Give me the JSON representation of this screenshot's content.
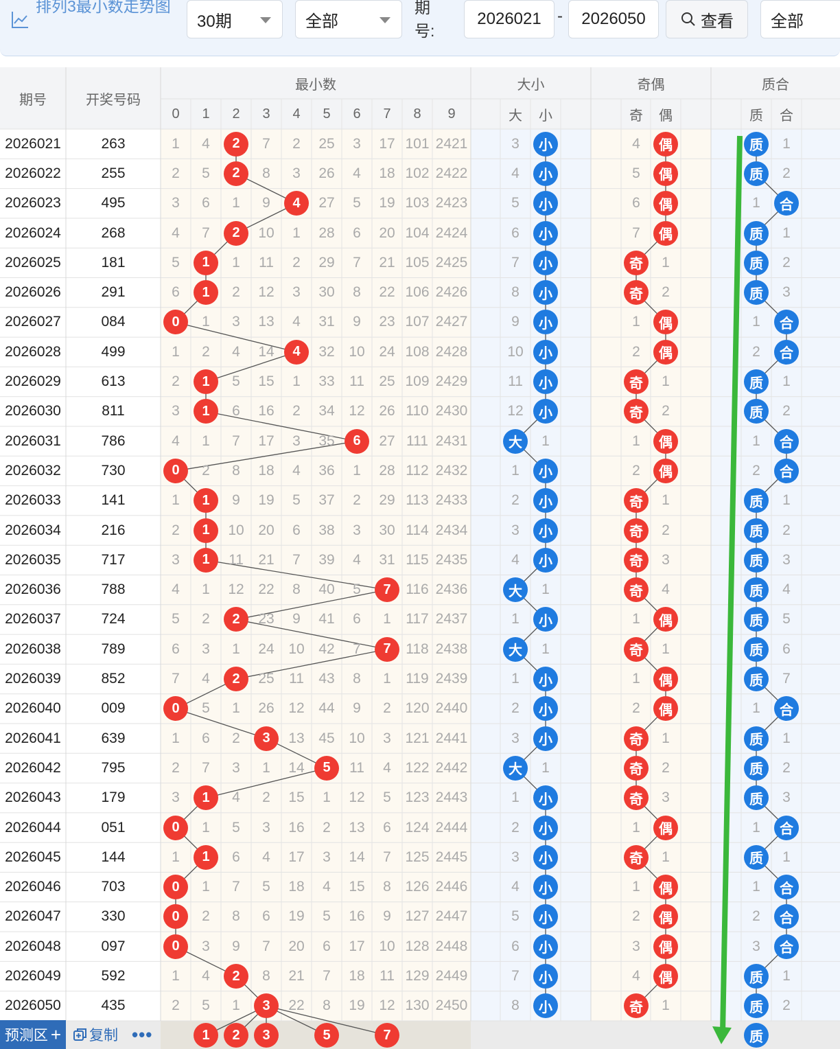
{
  "toolbar": {
    "title": "排列3最小数走势图",
    "period_select": "30期",
    "type_select": "全部",
    "issue_label": "期号:",
    "issue_from": "2026021",
    "issue_dash": "-",
    "issue_to": "2026050",
    "view_button": "查看",
    "filter_select": "全部"
  },
  "headers": {
    "issue": "期号",
    "draw": "开奖号码",
    "min_group": "最小数",
    "digits": [
      "0",
      "1",
      "2",
      "3",
      "4",
      "5",
      "6",
      "7",
      "8",
      "9"
    ],
    "size_group": "大小",
    "size_cols": [
      "大",
      "小"
    ],
    "parity_group": "奇偶",
    "parity_cols": [
      "奇",
      "偶"
    ],
    "prime_group": "质合",
    "prime_cols": [
      "质",
      "合"
    ]
  },
  "rows": [
    {
      "issue": "2026021",
      "draw": "263",
      "digits": [
        "1",
        "4",
        "2",
        "7",
        "2",
        "25",
        "3",
        "17",
        "101",
        "2421"
      ],
      "hit": 2,
      "size": [
        "3",
        "小"
      ],
      "size_hit": 1,
      "parity": [
        "4",
        "偶"
      ],
      "parity_hit": 1,
      "prime": [
        "质",
        "1"
      ],
      "prime_hit": 0
    },
    {
      "issue": "2026022",
      "draw": "255",
      "digits": [
        "2",
        "5",
        "2",
        "8",
        "3",
        "26",
        "4",
        "18",
        "102",
        "2422"
      ],
      "hit": 2,
      "size": [
        "4",
        "小"
      ],
      "size_hit": 1,
      "parity": [
        "5",
        "偶"
      ],
      "parity_hit": 1,
      "prime": [
        "质",
        "2"
      ],
      "prime_hit": 0
    },
    {
      "issue": "2026023",
      "draw": "495",
      "digits": [
        "3",
        "6",
        "1",
        "9",
        "4",
        "27",
        "5",
        "19",
        "103",
        "2423"
      ],
      "hit": 4,
      "size": [
        "5",
        "小"
      ],
      "size_hit": 1,
      "parity": [
        "6",
        "偶"
      ],
      "parity_hit": 1,
      "prime": [
        "1",
        "合"
      ],
      "prime_hit": 1
    },
    {
      "issue": "2026024",
      "draw": "268",
      "digits": [
        "4",
        "7",
        "2",
        "10",
        "1",
        "28",
        "6",
        "20",
        "104",
        "2424"
      ],
      "hit": 2,
      "size": [
        "6",
        "小"
      ],
      "size_hit": 1,
      "parity": [
        "7",
        "偶"
      ],
      "parity_hit": 1,
      "prime": [
        "质",
        "1"
      ],
      "prime_hit": 0
    },
    {
      "issue": "2026025",
      "draw": "181",
      "digits": [
        "5",
        "1",
        "1",
        "11",
        "2",
        "29",
        "7",
        "21",
        "105",
        "2425"
      ],
      "hit": 1,
      "size": [
        "7",
        "小"
      ],
      "size_hit": 1,
      "parity": [
        "奇",
        "1"
      ],
      "parity_hit": 0,
      "prime": [
        "质",
        "2"
      ],
      "prime_hit": 0
    },
    {
      "issue": "2026026",
      "draw": "291",
      "digits": [
        "6",
        "1",
        "2",
        "12",
        "3",
        "30",
        "8",
        "22",
        "106",
        "2426"
      ],
      "hit": 1,
      "size": [
        "8",
        "小"
      ],
      "size_hit": 1,
      "parity": [
        "奇",
        "2"
      ],
      "parity_hit": 0,
      "prime": [
        "质",
        "3"
      ],
      "prime_hit": 0
    },
    {
      "issue": "2026027",
      "draw": "084",
      "digits": [
        "0",
        "1",
        "3",
        "13",
        "4",
        "31",
        "9",
        "23",
        "107",
        "2427"
      ],
      "hit": 0,
      "size": [
        "9",
        "小"
      ],
      "size_hit": 1,
      "parity": [
        "1",
        "偶"
      ],
      "parity_hit": 1,
      "prime": [
        "1",
        "合"
      ],
      "prime_hit": 1
    },
    {
      "issue": "2026028",
      "draw": "499",
      "digits": [
        "1",
        "2",
        "4",
        "14",
        "4",
        "32",
        "10",
        "24",
        "108",
        "2428"
      ],
      "hit": 4,
      "size": [
        "10",
        "小"
      ],
      "size_hit": 1,
      "parity": [
        "2",
        "偶"
      ],
      "parity_hit": 1,
      "prime": [
        "2",
        "合"
      ],
      "prime_hit": 1
    },
    {
      "issue": "2026029",
      "draw": "613",
      "digits": [
        "2",
        "1",
        "5",
        "15",
        "1",
        "33",
        "11",
        "25",
        "109",
        "2429"
      ],
      "hit": 1,
      "size": [
        "11",
        "小"
      ],
      "size_hit": 1,
      "parity": [
        "奇",
        "1"
      ],
      "parity_hit": 0,
      "prime": [
        "质",
        "1"
      ],
      "prime_hit": 0
    },
    {
      "issue": "2026030",
      "draw": "811",
      "digits": [
        "3",
        "1",
        "6",
        "16",
        "2",
        "34",
        "12",
        "26",
        "110",
        "2430"
      ],
      "hit": 1,
      "size": [
        "12",
        "小"
      ],
      "size_hit": 1,
      "parity": [
        "奇",
        "2"
      ],
      "parity_hit": 0,
      "prime": [
        "质",
        "2"
      ],
      "prime_hit": 0
    },
    {
      "issue": "2026031",
      "draw": "786",
      "digits": [
        "4",
        "1",
        "7",
        "17",
        "3",
        "35",
        "6",
        "27",
        "111",
        "2431"
      ],
      "hit": 6,
      "size": [
        "大",
        "1"
      ],
      "size_hit": 0,
      "parity": [
        "1",
        "偶"
      ],
      "parity_hit": 1,
      "prime": [
        "1",
        "合"
      ],
      "prime_hit": 1
    },
    {
      "issue": "2026032",
      "draw": "730",
      "digits": [
        "0",
        "2",
        "8",
        "18",
        "4",
        "36",
        "1",
        "28",
        "112",
        "2432"
      ],
      "hit": 0,
      "size": [
        "1",
        "小"
      ],
      "size_hit": 1,
      "parity": [
        "2",
        "偶"
      ],
      "parity_hit": 1,
      "prime": [
        "2",
        "合"
      ],
      "prime_hit": 1
    },
    {
      "issue": "2026033",
      "draw": "141",
      "digits": [
        "1",
        "1",
        "9",
        "19",
        "5",
        "37",
        "2",
        "29",
        "113",
        "2433"
      ],
      "hit": 1,
      "size": [
        "2",
        "小"
      ],
      "size_hit": 1,
      "parity": [
        "奇",
        "1"
      ],
      "parity_hit": 0,
      "prime": [
        "质",
        "1"
      ],
      "prime_hit": 0
    },
    {
      "issue": "2026034",
      "draw": "216",
      "digits": [
        "2",
        "1",
        "10",
        "20",
        "6",
        "38",
        "3",
        "30",
        "114",
        "2434"
      ],
      "hit": 1,
      "size": [
        "3",
        "小"
      ],
      "size_hit": 1,
      "parity": [
        "奇",
        "2"
      ],
      "parity_hit": 0,
      "prime": [
        "质",
        "2"
      ],
      "prime_hit": 0
    },
    {
      "issue": "2026035",
      "draw": "717",
      "digits": [
        "3",
        "1",
        "11",
        "21",
        "7",
        "39",
        "4",
        "31",
        "115",
        "2435"
      ],
      "hit": 1,
      "size": [
        "4",
        "小"
      ],
      "size_hit": 1,
      "parity": [
        "奇",
        "3"
      ],
      "parity_hit": 0,
      "prime": [
        "质",
        "3"
      ],
      "prime_hit": 0
    },
    {
      "issue": "2026036",
      "draw": "788",
      "digits": [
        "4",
        "1",
        "12",
        "22",
        "8",
        "40",
        "5",
        "7",
        "116",
        "2436"
      ],
      "hit": 7,
      "size": [
        "大",
        "1"
      ],
      "size_hit": 0,
      "parity": [
        "奇",
        "4"
      ],
      "parity_hit": 0,
      "prime": [
        "质",
        "4"
      ],
      "prime_hit": 0
    },
    {
      "issue": "2026037",
      "draw": "724",
      "digits": [
        "5",
        "2",
        "2",
        "23",
        "9",
        "41",
        "6",
        "1",
        "117",
        "2437"
      ],
      "hit": 2,
      "size": [
        "1",
        "小"
      ],
      "size_hit": 1,
      "parity": [
        "1",
        "偶"
      ],
      "parity_hit": 1,
      "prime": [
        "质",
        "5"
      ],
      "prime_hit": 0
    },
    {
      "issue": "2026038",
      "draw": "789",
      "digits": [
        "6",
        "3",
        "1",
        "24",
        "10",
        "42",
        "7",
        "7",
        "118",
        "2438"
      ],
      "hit": 7,
      "size": [
        "大",
        "1"
      ],
      "size_hit": 0,
      "parity": [
        "奇",
        "1"
      ],
      "parity_hit": 0,
      "prime": [
        "质",
        "6"
      ],
      "prime_hit": 0
    },
    {
      "issue": "2026039",
      "draw": "852",
      "digits": [
        "7",
        "4",
        "2",
        "25",
        "11",
        "43",
        "8",
        "1",
        "119",
        "2439"
      ],
      "hit": 2,
      "size": [
        "1",
        "小"
      ],
      "size_hit": 1,
      "parity": [
        "1",
        "偶"
      ],
      "parity_hit": 1,
      "prime": [
        "质",
        "7"
      ],
      "prime_hit": 0
    },
    {
      "issue": "2026040",
      "draw": "009",
      "digits": [
        "0",
        "5",
        "1",
        "26",
        "12",
        "44",
        "9",
        "2",
        "120",
        "2440"
      ],
      "hit": 0,
      "size": [
        "2",
        "小"
      ],
      "size_hit": 1,
      "parity": [
        "2",
        "偶"
      ],
      "parity_hit": 1,
      "prime": [
        "1",
        "合"
      ],
      "prime_hit": 1
    },
    {
      "issue": "2026041",
      "draw": "639",
      "digits": [
        "1",
        "6",
        "2",
        "3",
        "13",
        "45",
        "10",
        "3",
        "121",
        "2441"
      ],
      "hit": 3,
      "size": [
        "3",
        "小"
      ],
      "size_hit": 1,
      "parity": [
        "奇",
        "1"
      ],
      "parity_hit": 0,
      "prime": [
        "质",
        "1"
      ],
      "prime_hit": 0
    },
    {
      "issue": "2026042",
      "draw": "795",
      "digits": [
        "2",
        "7",
        "3",
        "1",
        "14",
        "5",
        "11",
        "4",
        "122",
        "2442"
      ],
      "hit": 5,
      "size": [
        "大",
        "1"
      ],
      "size_hit": 0,
      "parity": [
        "奇",
        "2"
      ],
      "parity_hit": 0,
      "prime": [
        "质",
        "2"
      ],
      "prime_hit": 0
    },
    {
      "issue": "2026043",
      "draw": "179",
      "digits": [
        "3",
        "1",
        "4",
        "2",
        "15",
        "1",
        "12",
        "5",
        "123",
        "2443"
      ],
      "hit": 1,
      "size": [
        "1",
        "小"
      ],
      "size_hit": 1,
      "parity": [
        "奇",
        "3"
      ],
      "parity_hit": 0,
      "prime": [
        "质",
        "3"
      ],
      "prime_hit": 0
    },
    {
      "issue": "2026044",
      "draw": "051",
      "digits": [
        "0",
        "1",
        "5",
        "3",
        "16",
        "2",
        "13",
        "6",
        "124",
        "2444"
      ],
      "hit": 0,
      "size": [
        "2",
        "小"
      ],
      "size_hit": 1,
      "parity": [
        "1",
        "偶"
      ],
      "parity_hit": 1,
      "prime": [
        "1",
        "合"
      ],
      "prime_hit": 1
    },
    {
      "issue": "2026045",
      "draw": "144",
      "digits": [
        "1",
        "1",
        "6",
        "4",
        "17",
        "3",
        "14",
        "7",
        "125",
        "2445"
      ],
      "hit": 1,
      "size": [
        "3",
        "小"
      ],
      "size_hit": 1,
      "parity": [
        "奇",
        "1"
      ],
      "parity_hit": 0,
      "prime": [
        "质",
        "1"
      ],
      "prime_hit": 0
    },
    {
      "issue": "2026046",
      "draw": "703",
      "digits": [
        "0",
        "1",
        "7",
        "5",
        "18",
        "4",
        "15",
        "8",
        "126",
        "2446"
      ],
      "hit": 0,
      "size": [
        "4",
        "小"
      ],
      "size_hit": 1,
      "parity": [
        "1",
        "偶"
      ],
      "parity_hit": 1,
      "prime": [
        "1",
        "合"
      ],
      "prime_hit": 1
    },
    {
      "issue": "2026047",
      "draw": "330",
      "digits": [
        "0",
        "2",
        "8",
        "6",
        "19",
        "5",
        "16",
        "9",
        "127",
        "2447"
      ],
      "hit": 0,
      "size": [
        "5",
        "小"
      ],
      "size_hit": 1,
      "parity": [
        "2",
        "偶"
      ],
      "parity_hit": 1,
      "prime": [
        "2",
        "合"
      ],
      "prime_hit": 1
    },
    {
      "issue": "2026048",
      "draw": "097",
      "digits": [
        "0",
        "3",
        "9",
        "7",
        "20",
        "6",
        "17",
        "10",
        "128",
        "2448"
      ],
      "hit": 0,
      "size": [
        "6",
        "小"
      ],
      "size_hit": 1,
      "parity": [
        "3",
        "偶"
      ],
      "parity_hit": 1,
      "prime": [
        "3",
        "合"
      ],
      "prime_hit": 1
    },
    {
      "issue": "2026049",
      "draw": "592",
      "digits": [
        "1",
        "4",
        "2",
        "8",
        "21",
        "7",
        "18",
        "11",
        "129",
        "2449"
      ],
      "hit": 2,
      "size": [
        "7",
        "小"
      ],
      "size_hit": 1,
      "parity": [
        "4",
        "偶"
      ],
      "parity_hit": 1,
      "prime": [
        "质",
        "1"
      ],
      "prime_hit": 0
    },
    {
      "issue": "2026050",
      "draw": "435",
      "digits": [
        "2",
        "5",
        "1",
        "3",
        "22",
        "8",
        "19",
        "12",
        "130",
        "2450"
      ],
      "hit": 3,
      "size": [
        "8",
        "小"
      ],
      "size_hit": 1,
      "parity": [
        "奇",
        "1"
      ],
      "parity_hit": 0,
      "prime": [
        "质",
        "2"
      ],
      "prime_hit": 0
    }
  ],
  "footer": {
    "label": "预测区",
    "plus": "+",
    "copy_label": "复制",
    "more": "•••",
    "predicted_digits": [
      1,
      2,
      3,
      5,
      7
    ],
    "predicted_digit_labels": [
      "1",
      "2",
      "3",
      "5",
      "7"
    ],
    "prime_pick": "质"
  },
  "colors": {
    "red": "#ef3b32",
    "blue": "#1f7be0",
    "green": "#3bb83b",
    "toolbar_bg": "#eef4fc",
    "accent": "#2f6cb8"
  }
}
